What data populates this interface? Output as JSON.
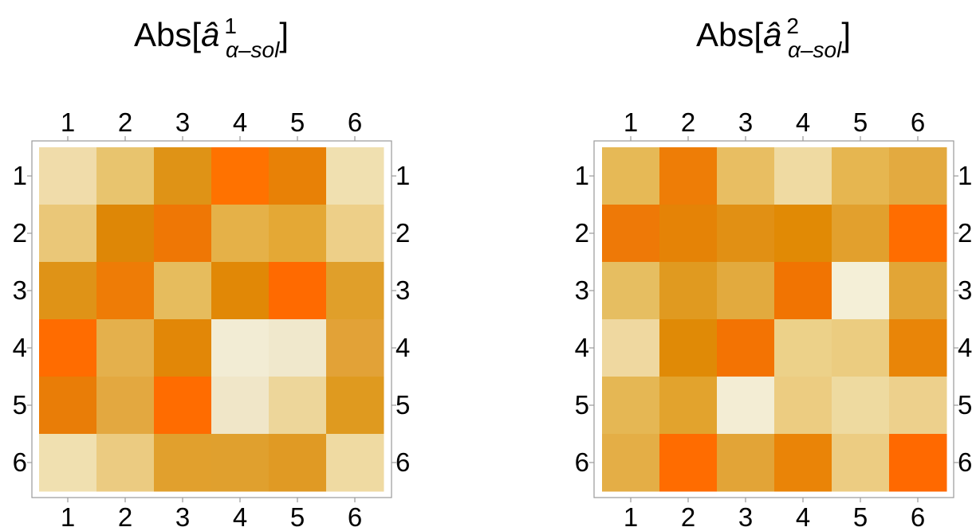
{
  "chart_data": [
    {
      "type": "heatmap",
      "title": {
        "prefix": "Abs[",
        "base": "â",
        "superscript": "1",
        "subscript": "α‒sol",
        "suffix": "]"
      },
      "rows": [
        "1",
        "2",
        "3",
        "4",
        "5",
        "6"
      ],
      "columns": [
        "1",
        "2",
        "3",
        "4",
        "5",
        "6"
      ],
      "colors": [
        [
          "#f0dcaa",
          "#e8c46e",
          "#df9316",
          "#ff7200",
          "#e88106",
          "#f0e0b0"
        ],
        [
          "#eac778",
          "#de8706",
          "#ef7705",
          "#e5b148",
          "#e4a835",
          "#edcf88"
        ],
        [
          "#df9317",
          "#ee7c06",
          "#e6bc5d",
          "#e18806",
          "#ff6a00",
          "#e09f2a"
        ],
        [
          "#ff6c00",
          "#e4b04c",
          "#e28707",
          "#f2ecd4",
          "#f0e8cc",
          "#e2a237"
        ],
        [
          "#e97d07",
          "#e3a840",
          "#ff6c00",
          "#f0e6c8",
          "#edd69a",
          "#df9a1f"
        ],
        [
          "#f0e0b0",
          "#ebcb81",
          "#e1a02d",
          "#e0a02e",
          "#e09a24",
          "#efdaa2"
        ]
      ],
      "grid": false,
      "legend": "none"
    },
    {
      "type": "heatmap",
      "title": {
        "prefix": "Abs[",
        "base": "â",
        "superscript": "2",
        "subscript": "α‒sol",
        "suffix": "]"
      },
      "rows": [
        "1",
        "2",
        "3",
        "4",
        "5",
        "6"
      ],
      "columns": [
        "1",
        "2",
        "3",
        "4",
        "5",
        "6"
      ],
      "colors": [
        [
          "#e6b956",
          "#ee7d06",
          "#e8be62",
          "#efdaa2",
          "#e6b650",
          "#e3aa40"
        ],
        [
          "#ee7907",
          "#e58306",
          "#e19014",
          "#e18a05",
          "#e2a02d",
          "#ff6d00"
        ],
        [
          "#e6be61",
          "#e09a20",
          "#e2aa3e",
          "#f17402",
          "#f4efd7",
          "#e2a536"
        ],
        [
          "#efd8a0",
          "#e08a06",
          "#f37303",
          "#ecd189",
          "#ebcc80",
          "#e98508"
        ],
        [
          "#e5b754",
          "#e2a32d",
          "#f3edd4",
          "#eccc81",
          "#eedaa0",
          "#edd08c"
        ],
        [
          "#e4ae46",
          "#ff6c00",
          "#e2a437",
          "#ea8407",
          "#eccc82",
          "#ff6900"
        ]
      ],
      "grid": false,
      "legend": "none"
    }
  ]
}
